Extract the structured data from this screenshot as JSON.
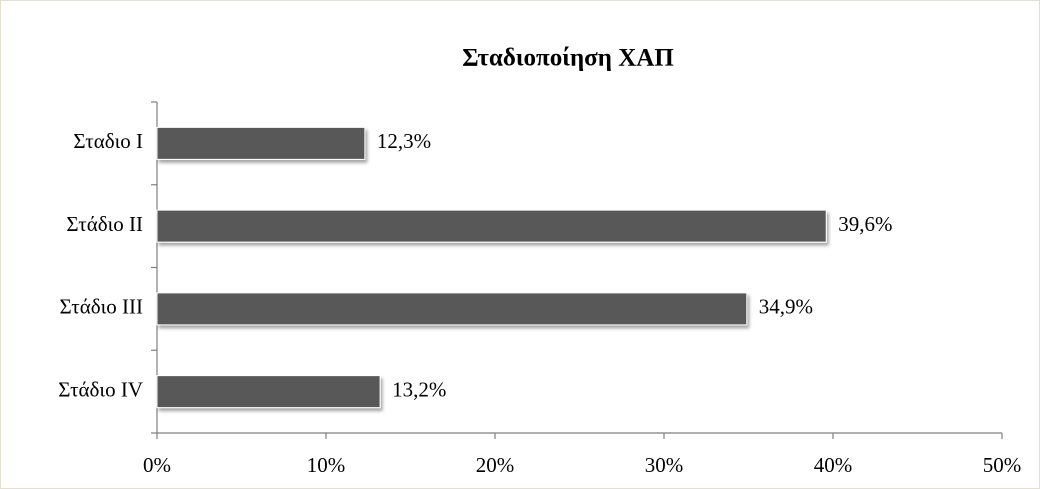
{
  "chart_data": {
    "type": "bar",
    "orientation": "horizontal",
    "title": "Σταδιοποίηση ΧΑΠ",
    "categories": [
      "Σταδιο Ι",
      "Στάδιο ΙΙ",
      "Στάδιο ΙΙΙ",
      "Στάδιο ΙV"
    ],
    "values": [
      12.3,
      39.6,
      34.9,
      13.2
    ],
    "value_labels": [
      "12,3%",
      "39,6%",
      "34,9%",
      "13,2%"
    ],
    "color": "#595959",
    "xlim": [
      0,
      50
    ],
    "xticks": [
      {
        "value": 0,
        "label": "0%"
      },
      {
        "value": 10,
        "label": "10%"
      },
      {
        "value": 20,
        "label": "20%"
      },
      {
        "value": 30,
        "label": "30%"
      },
      {
        "value": 40,
        "label": "40%"
      },
      {
        "value": 50,
        "label": "50%"
      }
    ],
    "grid": false
  }
}
